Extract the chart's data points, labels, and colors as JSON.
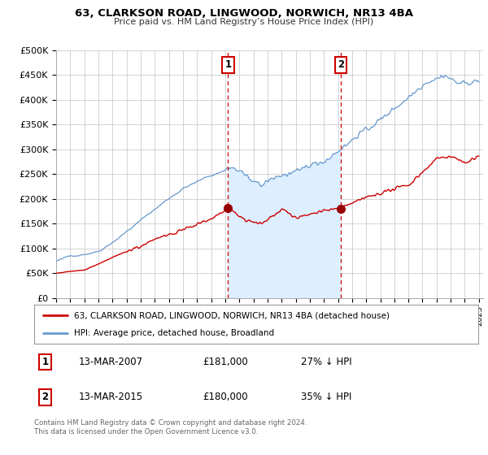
{
  "title": "63, CLARKSON ROAD, LINGWOOD, NORWICH, NR13 4BA",
  "subtitle": "Price paid vs. HM Land Registry’s House Price Index (HPI)",
  "ylabel_ticks": [
    "£0",
    "£50K",
    "£100K",
    "£150K",
    "£200K",
    "£250K",
    "£300K",
    "£350K",
    "£400K",
    "£450K",
    "£500K"
  ],
  "ytick_values": [
    0,
    50000,
    100000,
    150000,
    200000,
    250000,
    300000,
    350000,
    400000,
    450000,
    500000
  ],
  "ylim": [
    0,
    500000
  ],
  "xlim_start": 1995.0,
  "xlim_end": 2025.3,
  "marker1_x": 2007.2,
  "marker1_y": 181000,
  "marker2_x": 2015.2,
  "marker2_y": 180000,
  "legend_line1": "63, CLARKSON ROAD, LINGWOOD, NORWICH, NR13 4BA (detached house)",
  "legend_line2": "HPI: Average price, detached house, Broadland",
  "table_row1": [
    "1",
    "13-MAR-2007",
    "£181,000",
    "27% ↓ HPI"
  ],
  "table_row2": [
    "2",
    "13-MAR-2015",
    "£180,000",
    "35% ↓ HPI"
  ],
  "footer": "Contains HM Land Registry data © Crown copyright and database right 2024.\nThis data is licensed under the Open Government Licence v3.0.",
  "line_color_red": "#cc0000",
  "line_color_blue": "#6699cc",
  "fill_color_blue": "#ddeeff",
  "grid_color": "#cccccc",
  "background_color": "#ffffff",
  "marker_color": "#990000",
  "dashed_line_color": "#cc0000"
}
